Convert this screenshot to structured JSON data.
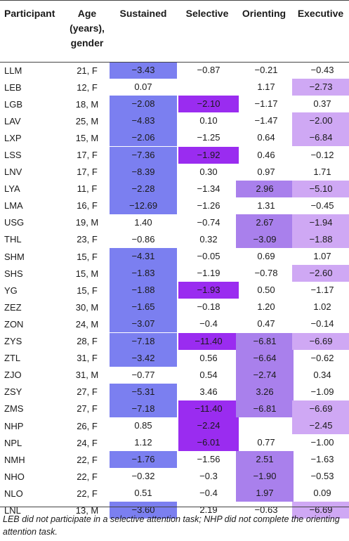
{
  "header": {
    "participant": "Participant",
    "age_line1": "Age",
    "age_line2": "(years),",
    "age_line3": "gender",
    "sustained": "Sustained",
    "selective": "Selective",
    "orienting": "Orienting",
    "executive": "Executive"
  },
  "highlight_colors": {
    "blue": "#7b7ff0",
    "violet": "#9a2cf0",
    "purple": "#a980ec",
    "lilac": "#cfa8f4"
  },
  "rows": [
    {
      "participant": "LLM",
      "age": "21, F",
      "sustained": "−3.43",
      "selective": "−0.87",
      "orienting": "−0.21",
      "executive": "−0.43",
      "hl": [
        "blue",
        "",
        "",
        ""
      ]
    },
    {
      "participant": "LEB",
      "age": "12, F",
      "sustained": "0.07",
      "selective": "",
      "orienting": "1.17",
      "executive": "−2.73",
      "hl": [
        "",
        "",
        "",
        "lilac"
      ]
    },
    {
      "participant": "LGB",
      "age": "18, M",
      "sustained": "−2.08",
      "selective": "−2.10",
      "orienting": "−1.17",
      "executive": "0.37",
      "hl": [
        "blue",
        "violet",
        "",
        ""
      ]
    },
    {
      "participant": "LAV",
      "age": "25, M",
      "sustained": "−4.83",
      "selective": "0.10",
      "orienting": "−1.47",
      "executive": "−2.00",
      "hl": [
        "blue",
        "",
        "",
        "lilac"
      ]
    },
    {
      "participant": "LXP",
      "age": "15, M",
      "sustained": "−2.06",
      "selective": "−1.25",
      "orienting": "0.64",
      "executive": "−6.84",
      "hl": [
        "blue",
        "",
        "",
        "lilac"
      ]
    },
    {
      "participant": "LSS",
      "age": "17, F",
      "sustained": "−7.36",
      "selective": "−1.92",
      "orienting": "0.46",
      "executive": "−0.12",
      "hl": [
        "blue",
        "violet",
        "",
        ""
      ]
    },
    {
      "participant": "LNV",
      "age": "17, F",
      "sustained": "−8.39",
      "selective": "0.30",
      "orienting": "0.97",
      "executive": "1.71",
      "hl": [
        "blue",
        "",
        "",
        ""
      ]
    },
    {
      "participant": "LYA",
      "age": "11, F",
      "sustained": "−2.28",
      "selective": "−1.34",
      "orienting": "2.96",
      "executive": "−5.10",
      "hl": [
        "blue",
        "",
        "purple",
        "lilac"
      ]
    },
    {
      "participant": "LMA",
      "age": "16, F",
      "sustained": "−12.69",
      "selective": "−1.26",
      "orienting": "1.31",
      "executive": "−0.45",
      "hl": [
        "blue",
        "",
        "",
        ""
      ]
    },
    {
      "participant": "USG",
      "age": "19, M",
      "sustained": "1.40",
      "selective": "−0.74",
      "orienting": "2.67",
      "executive": "−1.94",
      "hl": [
        "",
        "",
        "purple",
        "lilac"
      ]
    },
    {
      "participant": "THL",
      "age": "23, F",
      "sustained": "−0.86",
      "selective": "0.32",
      "orienting": "−3.09",
      "executive": "−1.88",
      "hl": [
        "",
        "",
        "purple",
        "lilac"
      ]
    },
    {
      "participant": "SHM",
      "age": "15, F",
      "sustained": "−4.31",
      "selective": "−0.05",
      "orienting": "0.69",
      "executive": "1.07",
      "hl": [
        "blue",
        "",
        "",
        ""
      ]
    },
    {
      "participant": "SHS",
      "age": "15, M",
      "sustained": "−1.83",
      "selective": "−1.19",
      "orienting": "−0.78",
      "executive": "−2.60",
      "hl": [
        "blue",
        "",
        "",
        "lilac"
      ]
    },
    {
      "participant": "YG",
      "age": "15, F",
      "sustained": "−1.88",
      "selective": "−1.93",
      "orienting": "0.50",
      "executive": "−1.17",
      "hl": [
        "blue",
        "violet",
        "",
        ""
      ]
    },
    {
      "participant": "ZEZ",
      "age": "30, M",
      "sustained": "−1.65",
      "selective": "−0.18",
      "orienting": "1.20",
      "executive": "1.02",
      "hl": [
        "blue",
        "",
        "",
        ""
      ]
    },
    {
      "participant": "ZON",
      "age": "24, M",
      "sustained": "−3.07",
      "selective": "−0.4",
      "orienting": "0.47",
      "executive": "−0.14",
      "hl": [
        "blue",
        "",
        "",
        ""
      ]
    },
    {
      "participant": "ZYS",
      "age": "28, F",
      "sustained": "−7.18",
      "selective": "−11.40",
      "orienting": "−6.81",
      "executive": "−6.69",
      "hl": [
        "blue",
        "violet",
        "purple",
        "lilac"
      ]
    },
    {
      "participant": "ZTL",
      "age": "31, F",
      "sustained": "−3.42",
      "selective": "0.56",
      "orienting": "−6.64",
      "executive": "−0.62",
      "hl": [
        "blue",
        "",
        "purple",
        ""
      ]
    },
    {
      "participant": "ZJO",
      "age": "31, M",
      "sustained": "−0.77",
      "selective": "0.54",
      "orienting": "−2.74",
      "executive": "0.34",
      "hl": [
        "",
        "",
        "purple",
        ""
      ]
    },
    {
      "participant": "ZSY",
      "age": "27, F",
      "sustained": "−5.31",
      "selective": "3.46",
      "orienting": "3.26",
      "executive": "−1.09",
      "hl": [
        "blue",
        "",
        "purple",
        ""
      ]
    },
    {
      "participant": "ZMS",
      "age": "27, F",
      "sustained": "−7.18",
      "selective": "−11.40",
      "orienting": "−6.81",
      "executive": "−6.69",
      "hl": [
        "blue",
        "violet",
        "purple",
        "lilac"
      ]
    },
    {
      "participant": "NHP",
      "age": "26, F",
      "sustained": "0.85",
      "selective": "−2.24",
      "orienting": "",
      "executive": "−2.45",
      "hl": [
        "",
        "violet",
        "",
        "lilac"
      ]
    },
    {
      "participant": "NPL",
      "age": "24, F",
      "sustained": "1.12",
      "selective": "−6.01",
      "orienting": "0.77",
      "executive": "−1.00",
      "hl": [
        "",
        "violet",
        "",
        ""
      ]
    },
    {
      "participant": "NMH",
      "age": "22, F",
      "sustained": "−1.76",
      "selective": "−1.56",
      "orienting": "2.51",
      "executive": "−1.63",
      "hl": [
        "blue",
        "",
        "purple",
        ""
      ]
    },
    {
      "participant": "NHO",
      "age": "22, F",
      "sustained": "−0.32",
      "selective": "−0.3",
      "orienting": "−1.90",
      "executive": "−0.53",
      "hl": [
        "",
        "",
        "purple",
        ""
      ]
    },
    {
      "participant": "NLO",
      "age": "22, F",
      "sustained": "0.51",
      "selective": "−0.4",
      "orienting": "1.97",
      "executive": "0.09",
      "hl": [
        "",
        "",
        "purple",
        ""
      ]
    },
    {
      "participant": "LNL",
      "age": "13, M",
      "sustained": "−3.60",
      "selective": "2.19",
      "orienting": "−0.63",
      "executive": "−6.69",
      "hl": [
        "blue",
        "",
        "",
        "lilac"
      ]
    }
  ],
  "footnote": "LEB did not participate in a selective attention task; NHP did not complete the orienting attention task."
}
